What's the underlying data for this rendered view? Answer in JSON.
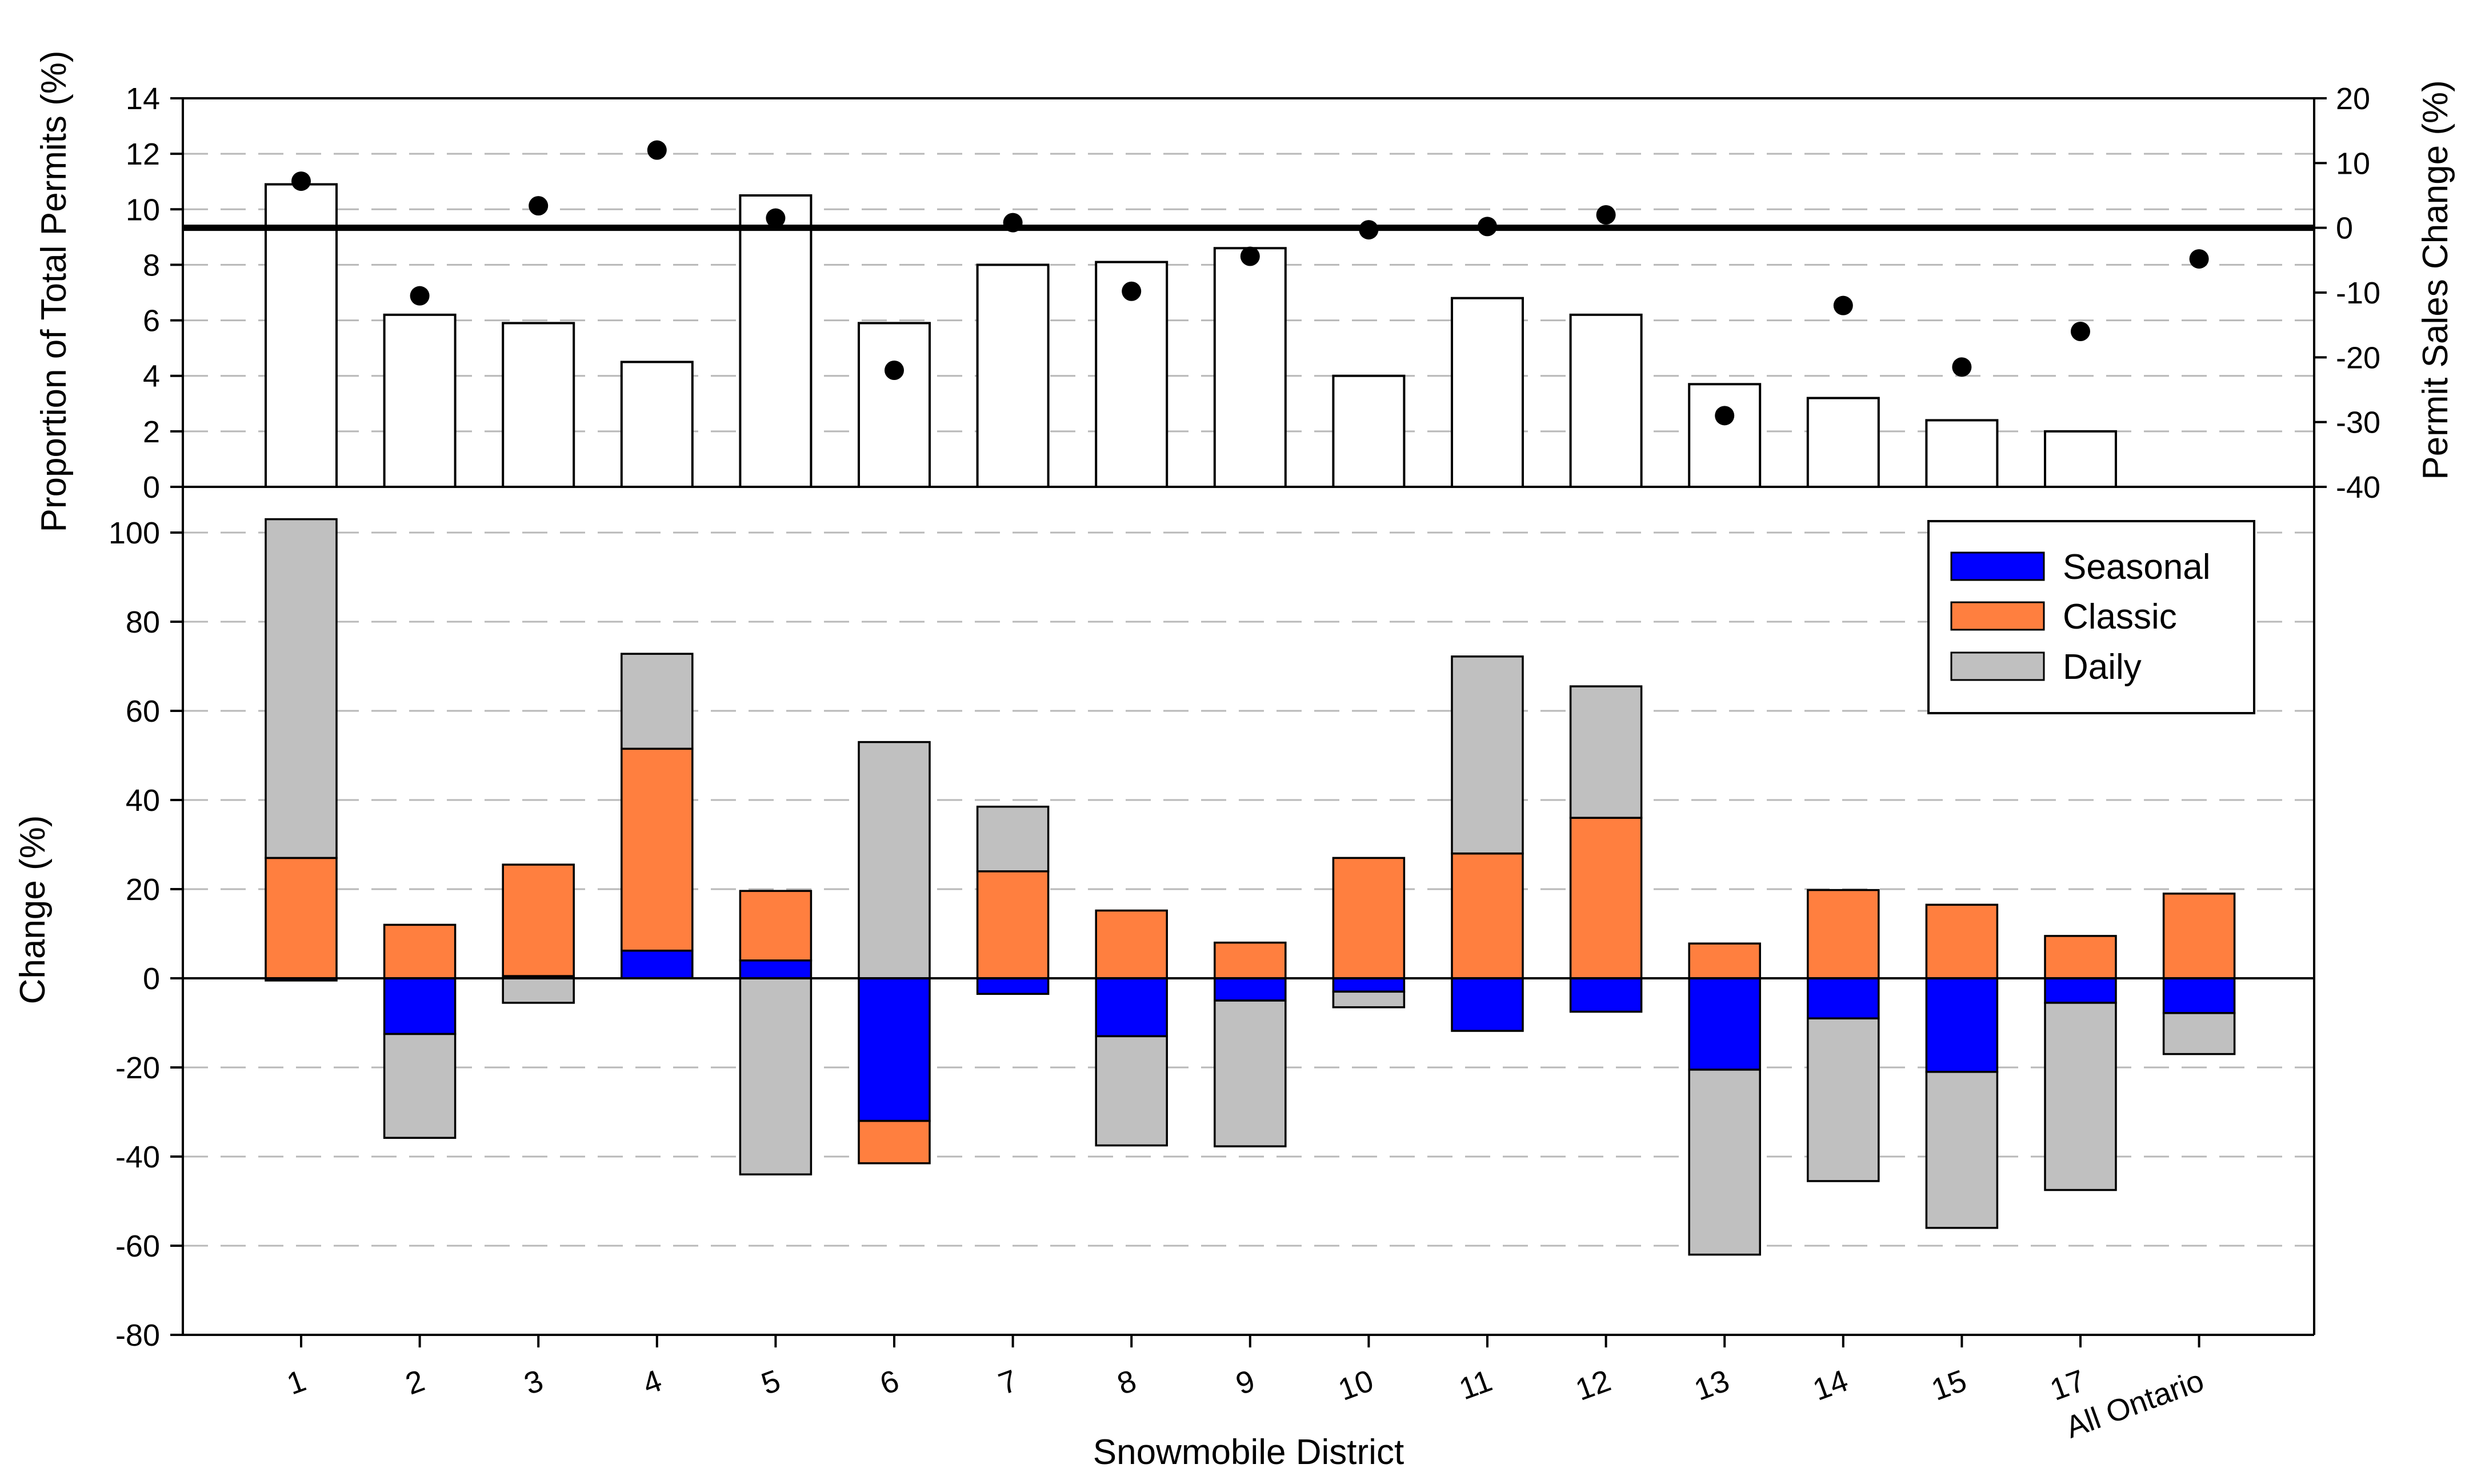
{
  "chart_data": [
    {
      "panel": "top",
      "type": "bar",
      "categories": [
        "1",
        "2",
        "3",
        "4",
        "5",
        "6",
        "7",
        "8",
        "9",
        "10",
        "11",
        "12",
        "13",
        "14",
        "15",
        "17",
        "All Ontario"
      ],
      "series": [
        {
          "name": "Proportion of Total Permits",
          "axis": "left",
          "type": "bar",
          "values": [
            10.9,
            6.2,
            5.9,
            4.5,
            10.5,
            5.9,
            8.0,
            8.1,
            8.6,
            4.0,
            6.8,
            6.2,
            3.7,
            3.2,
            2.4,
            2.0,
            null
          ]
        },
        {
          "name": "Permit Sales Change",
          "axis": "right",
          "type": "scatter",
          "values": [
            7.2,
            -10.5,
            3.4,
            12.0,
            1.5,
            -22.0,
            0.8,
            -9.8,
            -4.4,
            -0.3,
            0.2,
            2.0,
            -29.0,
            -12.0,
            -21.5,
            -16.0,
            -4.8
          ]
        }
      ],
      "ylabel": "Proportion of Total Permits (%)",
      "ylim": [
        0,
        14
      ],
      "yticks": [
        "0",
        "2",
        "4",
        "6",
        "8",
        "10",
        "12",
        "14"
      ],
      "y2label": "Permit Sales Change (%)",
      "y2lim": [
        -40,
        20
      ],
      "y2ticks": [
        "-40",
        "-30",
        "-20",
        "-10",
        "0",
        "10",
        "20"
      ],
      "reference_line_y2": 0
    },
    {
      "panel": "bottom",
      "type": "bar",
      "stacked": true,
      "categories": [
        "1",
        "2",
        "3",
        "4",
        "5",
        "6",
        "7",
        "8",
        "9",
        "10",
        "11",
        "12",
        "13",
        "14",
        "15",
        "17",
        "All Ontario"
      ],
      "series": [
        {
          "name": "Seasonal",
          "color": "#0000FF",
          "values": [
            -0.5,
            -12.5,
            0.5,
            6.2,
            4.0,
            -32.0,
            -3.5,
            -13.0,
            -5.0,
            -3.0,
            -11.8,
            -7.5,
            -20.5,
            -9.0,
            -21.0,
            -5.5,
            -7.8
          ]
        },
        {
          "name": "Classic",
          "color": "#FF7F3F",
          "values": [
            27.0,
            12.0,
            25.0,
            45.3,
            15.6,
            -9.5,
            24.0,
            15.2,
            8.0,
            27.0,
            28.0,
            36.0,
            7.8,
            19.8,
            16.5,
            9.5,
            19.0
          ]
        },
        {
          "name": "Daily",
          "color": "#C0C0C0",
          "values": [
            76.0,
            -23.3,
            -5.5,
            21.3,
            -44.0,
            53.0,
            14.5,
            -24.5,
            -32.7,
            -3.5,
            44.2,
            29.5,
            -41.5,
            -36.5,
            -35.0,
            -42.0,
            -9.2
          ]
        }
      ],
      "ylabel": "Change (%)",
      "ylim": [
        -80,
        110
      ],
      "yticks": [
        "-80",
        "-60",
        "-40",
        "-20",
        "0",
        "20",
        "40",
        "60",
        "80",
        "100"
      ],
      "xlabel": "Snowmobile District",
      "legend": {
        "position": "top-right",
        "entries": [
          "Seasonal",
          "Classic",
          "Daily"
        ]
      }
    }
  ]
}
